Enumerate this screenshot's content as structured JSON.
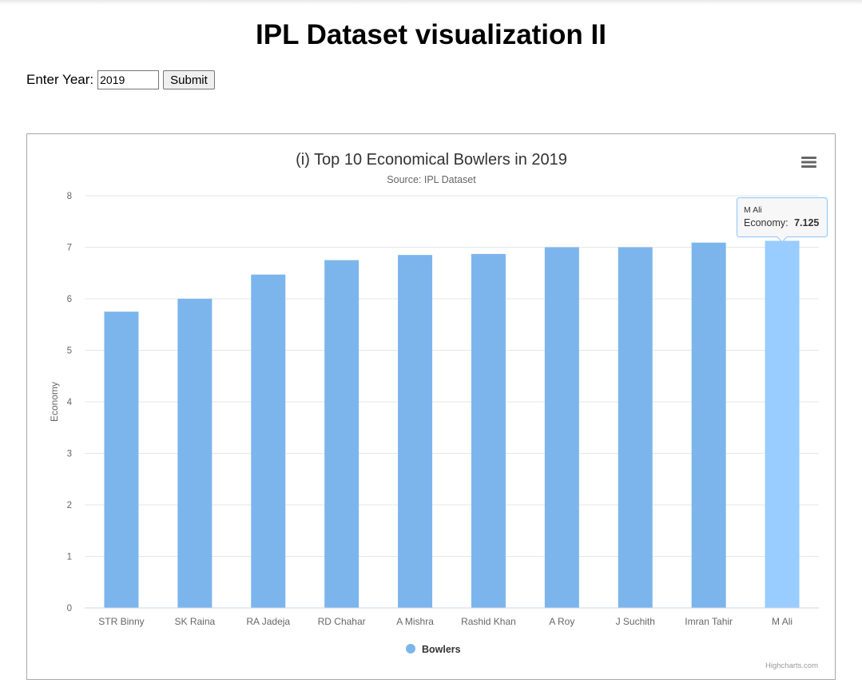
{
  "page": {
    "title": "IPL Dataset visualization II",
    "form": {
      "label": "Enter Year:",
      "year_value": "2019",
      "submit_label": "Submit"
    }
  },
  "chart_data": {
    "type": "bar",
    "title": "(i) Top 10 Economical Bowlers in 2019",
    "subtitle": "Source: IPL Dataset",
    "xlabel": "",
    "ylabel": "Economy",
    "ylim": [
      0,
      8
    ],
    "yticks": [
      0,
      1,
      2,
      3,
      4,
      5,
      6,
      7,
      8
    ],
    "grid": true,
    "categories": [
      "STR Binny",
      "SK Raina",
      "RA Jadeja",
      "RD Chahar",
      "A Mishra",
      "Rashid Khan",
      "A Roy",
      "J Suchith",
      "Imran Tahir",
      "M Ali"
    ],
    "series": [
      {
        "name": "Bowlers",
        "color": "#7cb5ec",
        "values": [
          5.75,
          6.0,
          6.47,
          6.75,
          6.85,
          6.87,
          7.0,
          7.0,
          7.09,
          7.125
        ]
      }
    ],
    "highlight_color": "#99ccff",
    "legend_position": "bottom-center",
    "tooltip": {
      "category": "M Ali",
      "label": "Economy:",
      "value": "7.125"
    },
    "menu_icon": "hamburger-menu-icon",
    "credits": "Highcharts.com"
  }
}
